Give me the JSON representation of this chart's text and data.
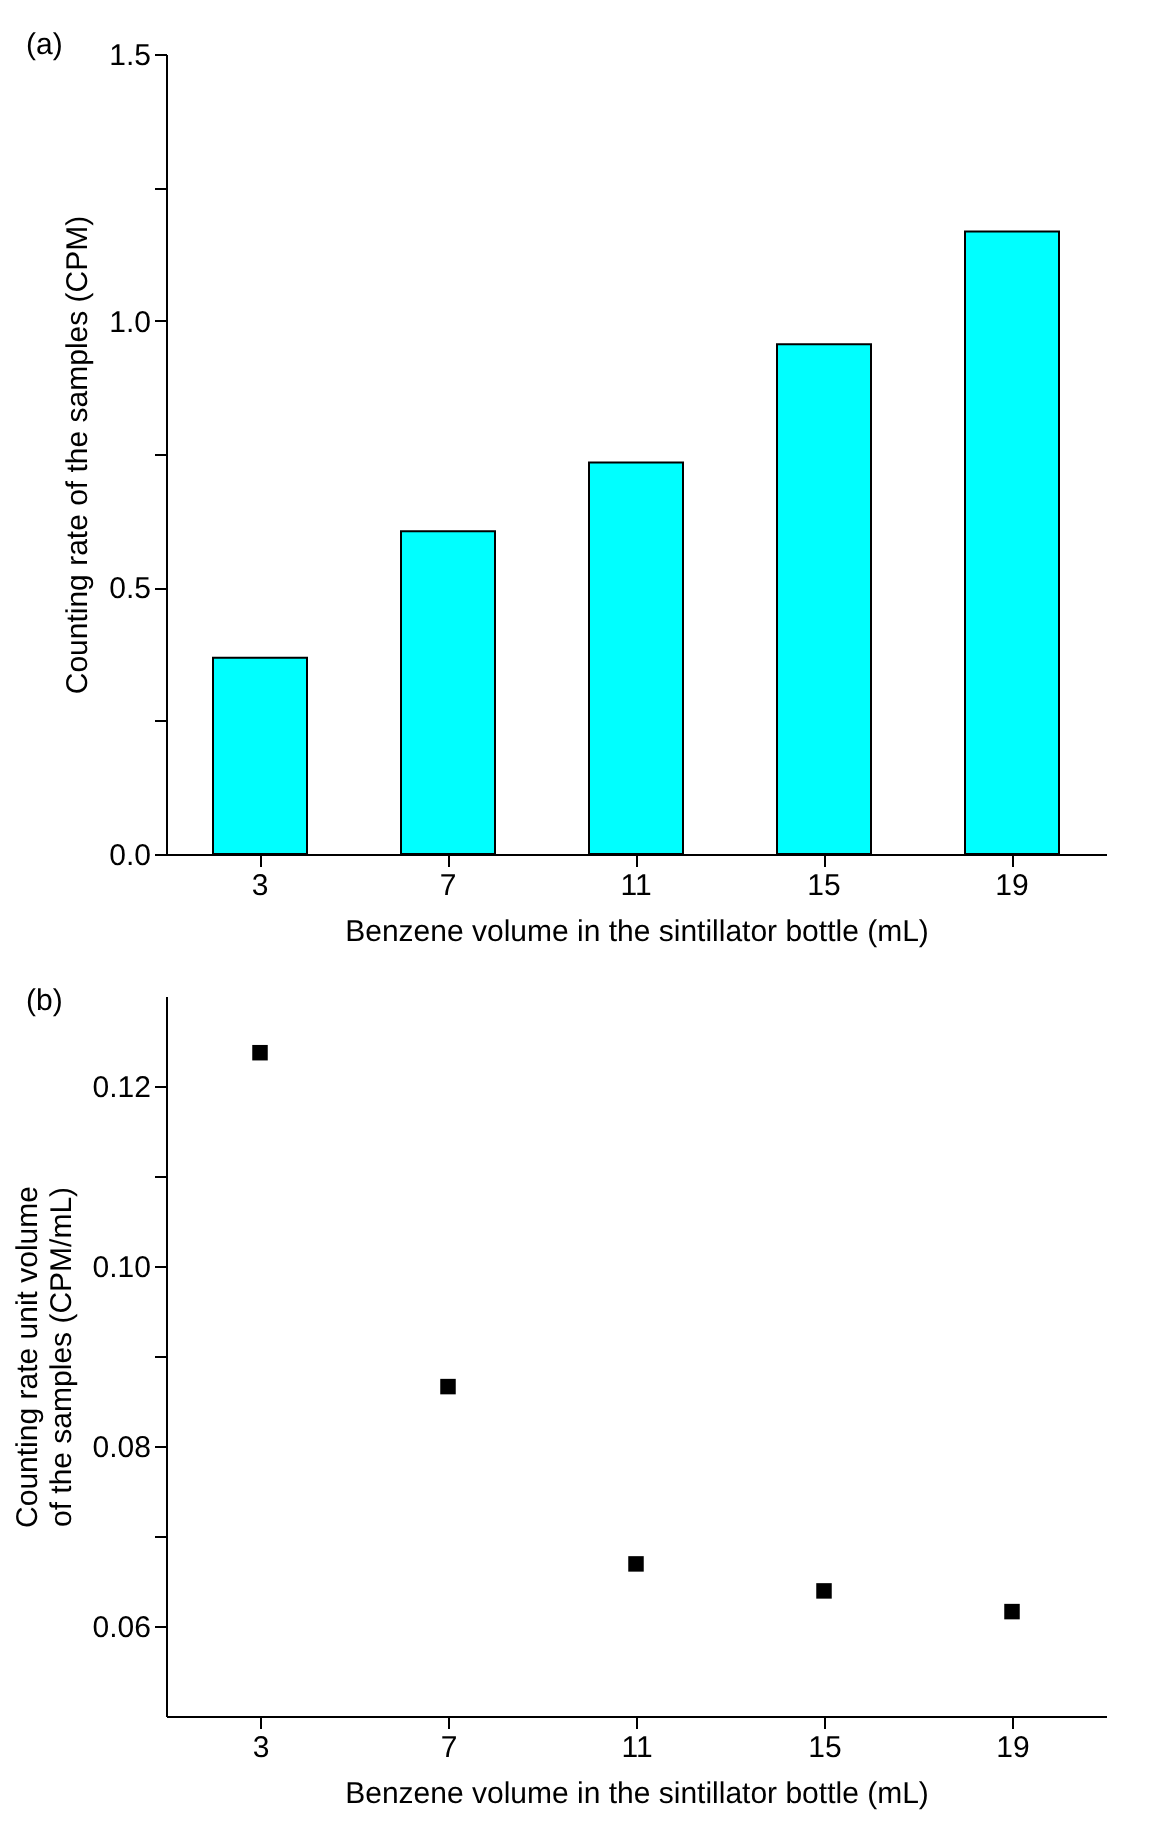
{
  "chart_data": [
    {
      "type": "bar",
      "title": "(a)",
      "xlabel": "Benzene volume in the sintillator bottle (mL)",
      "ylabel": "Counting rate of the samples (CPM)",
      "categories": [
        "3",
        "7",
        "11",
        "15",
        "19"
      ],
      "series": [
        {
          "color": "#00ffff",
          "values": [
            0.368,
            0.605,
            0.734,
            0.956,
            1.167
          ]
        }
      ],
      "ylim": [
        0,
        1.5
      ],
      "yticks": [
        {
          "value": 0,
          "label": "0.0"
        },
        {
          "value": 0.25,
          "label": null
        },
        {
          "value": 0.5,
          "label": "0.5"
        },
        {
          "value": 0.75,
          "label": null
        },
        {
          "value": 1,
          "label": "1.0"
        },
        {
          "value": 1.25,
          "label": null
        },
        {
          "value": 1.5,
          "label": "1.5"
        }
      ],
      "grid": false,
      "legend": false
    },
    {
      "type": "scatter",
      "title": "(b)",
      "xlabel": "Benzene volume in the sintillator bottle (mL)",
      "ylabel": "Counting rate unit volume\nof the samples (CPM/mL)",
      "x": [
        3,
        7,
        11,
        15,
        19
      ],
      "series": [
        {
          "color": "#000000",
          "values": [
            0.1237,
            0.0866,
            0.0669,
            0.0639,
            0.0616
          ]
        }
      ],
      "xlim": [
        1,
        21
      ],
      "xticks": [
        3,
        7,
        11,
        15,
        19
      ],
      "ylim": [
        0.05,
        0.13
      ],
      "yticks": [
        0.06,
        {
          "value": 0.07,
          "label": null
        },
        0.08,
        {
          "value": 0.09,
          "label": null
        },
        {
          "value": 0.1,
          "label": "0.10"
        },
        {
          "value": 0.11,
          "label": null
        },
        0.12
      ],
      "marker": "square",
      "grid": false,
      "legend": false
    }
  ]
}
